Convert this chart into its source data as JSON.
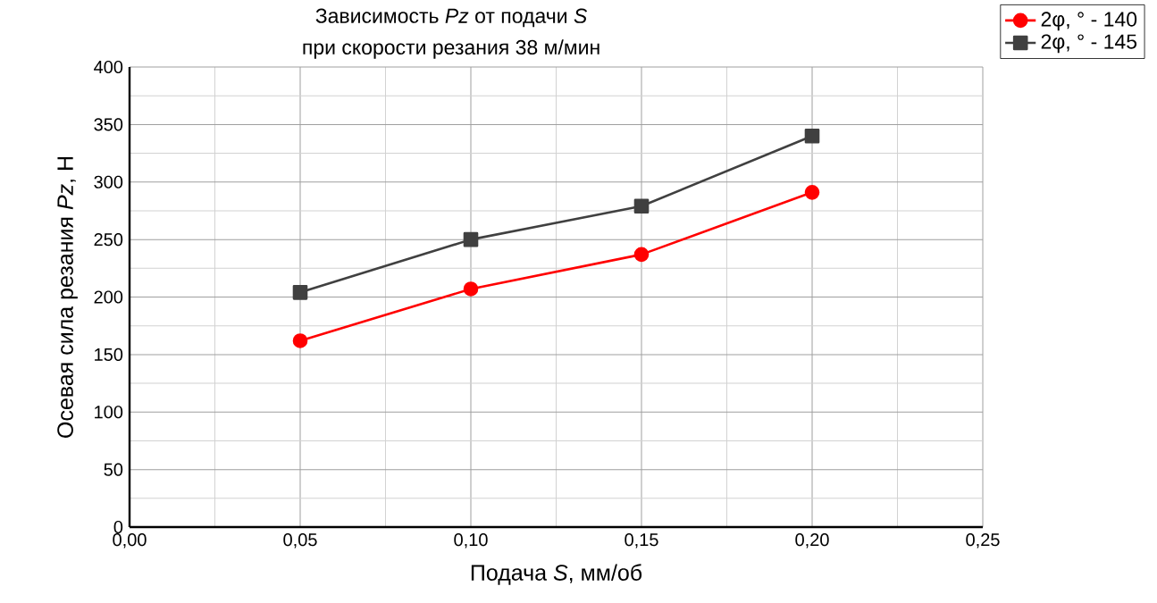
{
  "chart_data": {
    "type": "line",
    "title": "Зависимость *Pz* от подачи *S*",
    "subtitle": "при скорости резания 38 м/мин",
    "xlabel": "Подача *S*, мм/об",
    "ylabel": "Осевая сила резания *Pz*, Н",
    "x": [
      0.05,
      0.1,
      0.15,
      0.2
    ],
    "series": [
      {
        "name": "2φ, ° - 140",
        "color": "#ff0000",
        "marker": "circle",
        "values": [
          162,
          207,
          237,
          291
        ]
      },
      {
        "name": "2φ, ° - 145",
        "color": "#404040",
        "marker": "square",
        "values": [
          204,
          250,
          279,
          340
        ]
      }
    ],
    "xlim": [
      0,
      0.25
    ],
    "xticks": [
      {
        "value": 0,
        "label": "0,00"
      },
      {
        "value": 0.05,
        "label": "0,05"
      },
      {
        "value": 0.1,
        "label": "0,10"
      },
      {
        "value": 0.15,
        "label": "0,15"
      },
      {
        "value": 0.2,
        "label": "0,20"
      },
      {
        "value": 0.25,
        "label": "0,25"
      }
    ],
    "ylim": [
      0,
      400
    ],
    "yticks": [
      0,
      50,
      100,
      150,
      200,
      250,
      300,
      350,
      400
    ],
    "grid": true,
    "legend": "top right"
  }
}
